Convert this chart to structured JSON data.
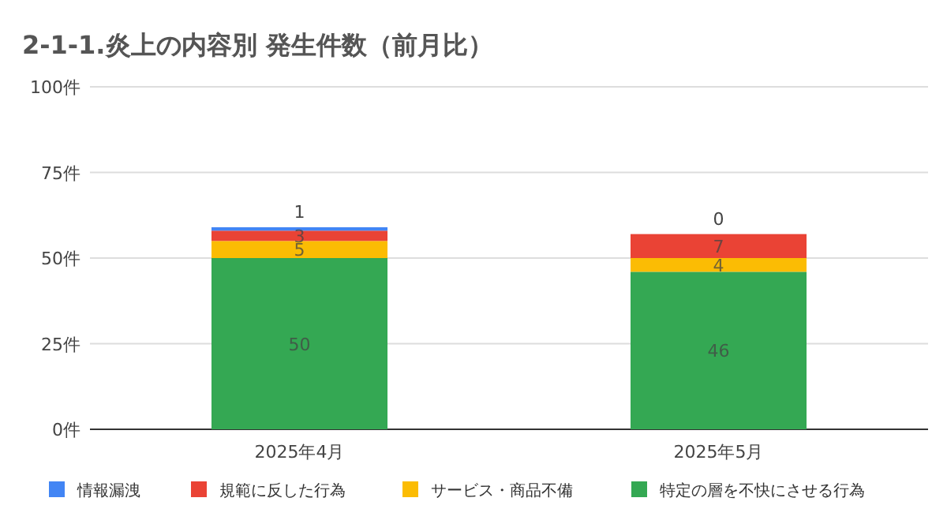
{
  "chart_data": {
    "type": "bar",
    "title": "2-1-1.炎上の内容別 発生件数（前月比）",
    "categories": [
      "2025年4月",
      "2025年5月"
    ],
    "stacked": true,
    "data_labels": true,
    "grid": "y",
    "legend": "bottom",
    "ylim": [
      0,
      100
    ],
    "yticks": [
      {
        "value": 0,
        "label": "0件"
      },
      {
        "value": 25,
        "label": "25件"
      },
      {
        "value": 50,
        "label": "50件"
      },
      {
        "value": 75,
        "label": "75件"
      },
      {
        "value": 100,
        "label": "100件"
      }
    ],
    "series": [
      {
        "name": "特定の層を不快にさせる行為",
        "color": "#34a853",
        "values": [
          50,
          46
        ]
      },
      {
        "name": "サービス・商品不備",
        "color": "#fbbc04",
        "values": [
          5,
          4
        ]
      },
      {
        "name": "規範に反した行為",
        "color": "#ea4335",
        "values": [
          3,
          7
        ]
      },
      {
        "name": "情報漏洩",
        "color": "#4285f4",
        "values": [
          1,
          0
        ]
      }
    ]
  }
}
